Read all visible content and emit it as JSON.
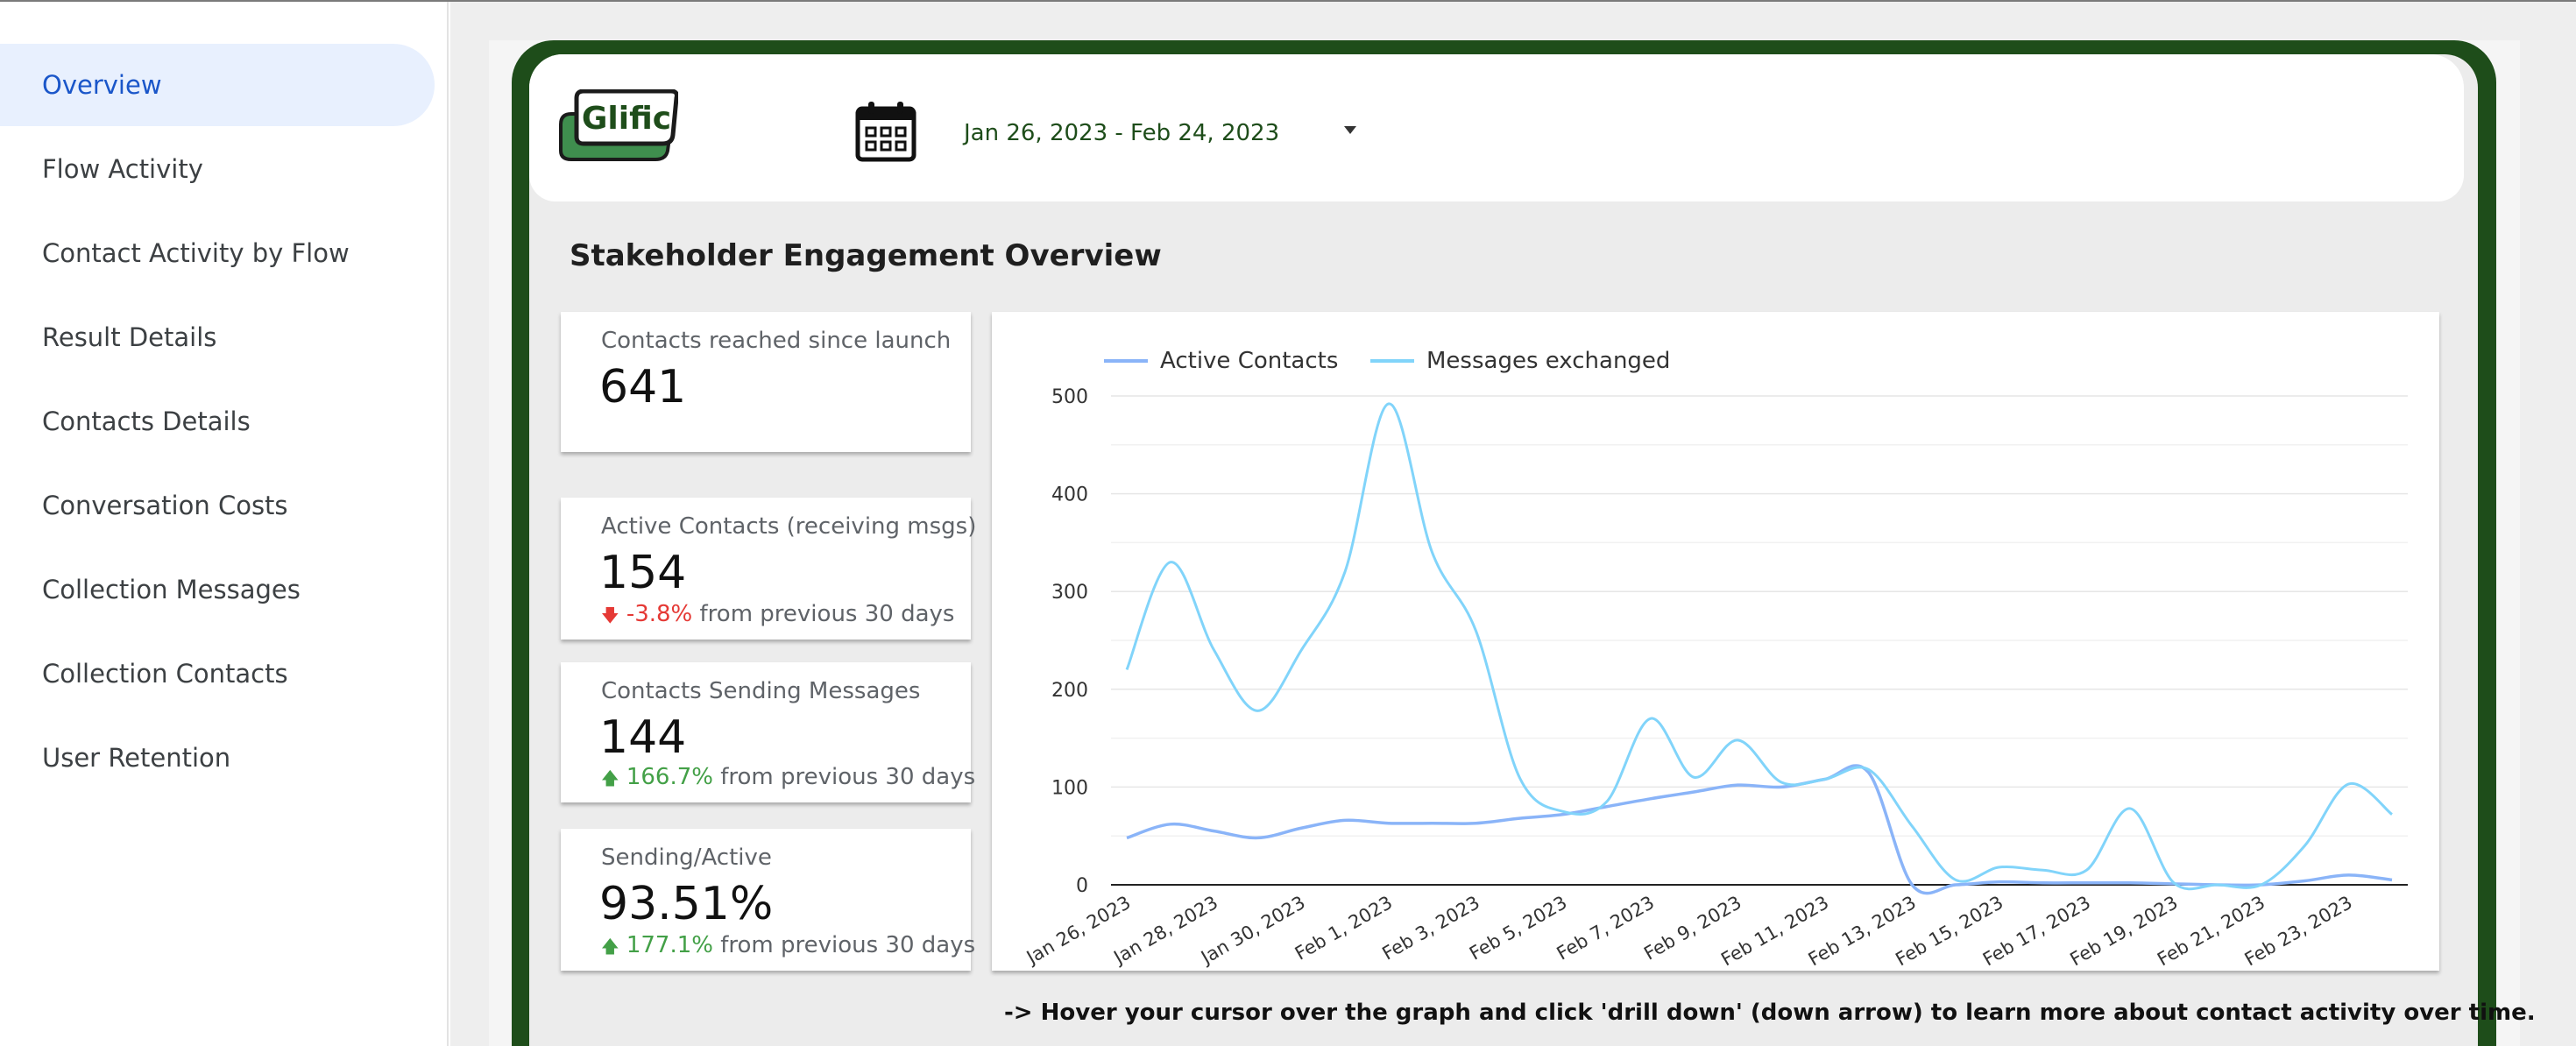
{
  "sidebar": {
    "items": [
      {
        "label": "Overview",
        "active": true
      },
      {
        "label": "Flow Activity",
        "active": false
      },
      {
        "label": "Contact Activity by Flow",
        "active": false
      },
      {
        "label": "Result Details",
        "active": false
      },
      {
        "label": "Contacts Details",
        "active": false
      },
      {
        "label": "Conversation Costs",
        "active": false
      },
      {
        "label": "Collection Messages",
        "active": false
      },
      {
        "label": "Collection Contacts",
        "active": false
      },
      {
        "label": "User Retention",
        "active": false
      }
    ]
  },
  "header": {
    "logo_text": "Glific",
    "date_range": "Jan 26, 2023 - Feb 24, 2023",
    "calendar_icon": "calendar-icon",
    "dropdown_icon": "caret-down-icon"
  },
  "section_title": "Stakeholder Engagement Overview",
  "kpis": [
    {
      "label": "Contacts reached since launch",
      "value": "641"
    },
    {
      "label": "Active Contacts (receiving msgs)",
      "value": "154",
      "delta": "-3.8%",
      "delta_text": "from previous 30 days",
      "direction": "down"
    },
    {
      "label": "Contacts Sending Messages",
      "value": "144",
      "delta": "166.7%",
      "delta_text": "from previous 30 days",
      "direction": "up"
    },
    {
      "label": "Sending/Active",
      "value": "93.51%",
      "delta": "177.1%",
      "delta_text": "from previous 30 days",
      "direction": "up"
    }
  ],
  "colors": {
    "frame_green": "#1e4d1a",
    "active_nav_bg": "#e8f0fe",
    "active_nav_text": "#1a56c9",
    "delta_down": "#e53935",
    "delta_up": "#43a047",
    "series_active": "#8ab4f8",
    "series_messages": "#81d4fa"
  },
  "chart_data": {
    "type": "line",
    "x": [
      "Jan 26, 2023",
      "Jan 27, 2023",
      "Jan 28, 2023",
      "Jan 29, 2023",
      "Jan 30, 2023",
      "Jan 31, 2023",
      "Feb 1, 2023",
      "Feb 2, 2023",
      "Feb 3, 2023",
      "Feb 4, 2023",
      "Feb 5, 2023",
      "Feb 6, 2023",
      "Feb 7, 2023",
      "Feb 8, 2023",
      "Feb 9, 2023",
      "Feb 10, 2023",
      "Feb 11, 2023",
      "Feb 12, 2023",
      "Feb 13, 2023",
      "Feb 14, 2023",
      "Feb 15, 2023",
      "Feb 16, 2023",
      "Feb 17, 2023",
      "Feb 18, 2023",
      "Feb 19, 2023",
      "Feb 20, 2023",
      "Feb 21, 2023",
      "Feb 22, 2023",
      "Feb 23, 2023",
      "Feb 24, 2023"
    ],
    "tick_labels": [
      "Jan 26, 2023",
      "Jan 28, 2023",
      "Jan 30, 2023",
      "Feb 1, 2023",
      "Feb 3, 2023",
      "Feb 5, 2023",
      "Feb 7, 2023",
      "Feb 9, 2023",
      "Feb 11, 2023",
      "Feb 13, 2023",
      "Feb 15, 2023",
      "Feb 17, 2023",
      "Feb 19, 2023",
      "Feb 21, 2023",
      "Feb 23, 2023"
    ],
    "series": [
      {
        "name": "Active Contacts",
        "color": "#8ab4f8",
        "values": [
          48,
          62,
          55,
          48,
          58,
          66,
          63,
          63,
          63,
          68,
          72,
          80,
          88,
          95,
          102,
          100,
          108,
          115,
          0,
          0,
          3,
          2,
          2,
          2,
          1,
          0,
          0,
          4,
          10,
          5
        ]
      },
      {
        "name": "Messages exchanged",
        "color": "#81d4fa",
        "values": [
          220,
          330,
          240,
          178,
          240,
          320,
          492,
          340,
          260,
          110,
          75,
          85,
          170,
          110,
          148,
          105,
          108,
          118,
          60,
          5,
          18,
          15,
          15,
          78,
          2,
          0,
          0,
          40,
          103,
          72
        ]
      }
    ],
    "ylim": [
      0,
      500
    ],
    "yticks": [
      0,
      100,
      200,
      300,
      400,
      500
    ],
    "grid": true,
    "legend_position": "top-left"
  },
  "footnote": "-> Hover your cursor over the graph and click 'drill down' (down arrow) to learn more about contact activity over time."
}
